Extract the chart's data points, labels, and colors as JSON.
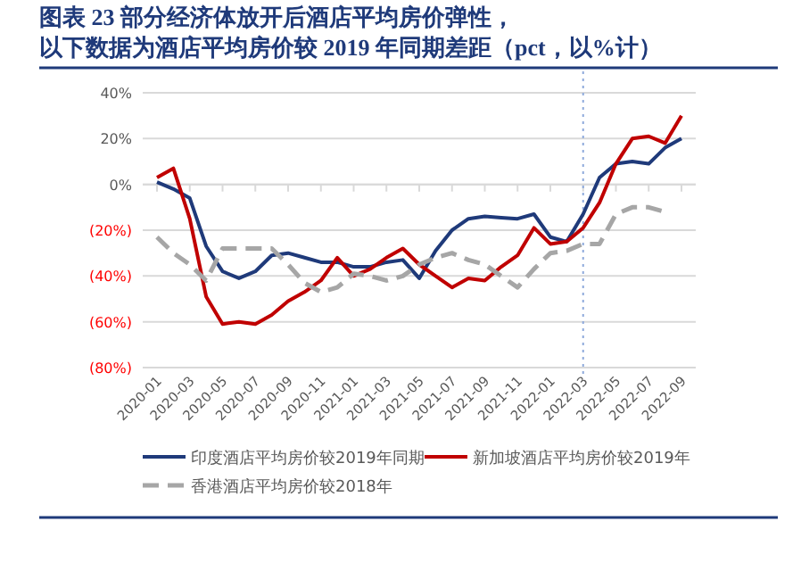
{
  "chart_data": {
    "type": "line",
    "title": "图表 23 部分经济体放开后酒店平均房价弹性，以下数据为酒店平均房价较 2019 年同期差距（pct，以%计）",
    "categories": [
      "2020-01",
      null,
      "2020-03",
      null,
      "2020-05",
      null,
      "2020-07",
      null,
      "2020-09",
      null,
      "2020-11",
      null,
      "2021-01",
      null,
      "2021-03",
      null,
      "2021-05",
      null,
      "2021-07",
      null,
      "2021-09",
      null,
      "2021-11",
      null,
      "2022-01",
      null,
      "2022-03",
      null,
      "2022-05",
      null,
      "2022-07",
      null,
      "2022-09"
    ],
    "series": [
      {
        "name": "印度酒店平均房价较2019年同期",
        "color": "#1f3a7a",
        "line_style": "solid",
        "values": [
          1,
          -2,
          -6,
          -27,
          -38,
          -41,
          -38,
          -31,
          -30,
          -32,
          -34,
          -34,
          -36,
          -36,
          -34,
          -33,
          -41,
          -29,
          -20,
          -15,
          -14,
          -14.5,
          -15,
          -13,
          -23,
          -25,
          -13,
          3,
          9,
          10,
          9,
          16,
          20
        ]
      },
      {
        "name": "新加坡酒店平均房价较2019年",
        "color": "#c00000",
        "line_style": "solid",
        "values": [
          3,
          7,
          -15,
          -49,
          -61,
          -60,
          -61,
          -57,
          -51,
          -47,
          -42,
          -32,
          -40,
          -37,
          -32,
          -28,
          -35,
          -40,
          -45,
          -41,
          -42,
          -36,
          -31,
          -19,
          -26,
          -25,
          -19,
          -8,
          9,
          20,
          21,
          18,
          30
        ]
      },
      {
        "name": "香港酒店平均房价较2018年",
        "color": "#a6a6a6",
        "line_style": "dashed",
        "values": [
          -23,
          -30,
          -35,
          -42,
          -28,
          -28,
          -28,
          -28,
          -35,
          -43,
          -47,
          -45,
          -39,
          -40,
          -42,
          -40,
          -35,
          -32,
          -30,
          -33,
          -35,
          -40,
          -45,
          -37,
          -30,
          -29,
          -26,
          -26,
          -13,
          -10,
          -10,
          -12,
          null
        ]
      }
    ],
    "ylim": [
      -80,
      40
    ],
    "yticks": [
      {
        "value": -80,
        "label": "(80%)"
      },
      {
        "value": -60,
        "label": "(60%)"
      },
      {
        "value": -40,
        "label": "(40%)"
      },
      {
        "value": -20,
        "label": "(20%)"
      },
      {
        "value": 0,
        "label": "0%"
      },
      {
        "value": 20,
        "label": "20%"
      },
      {
        "value": 40,
        "label": "40%"
      }
    ],
    "grid": "y",
    "legend": "bottom",
    "ref_lines": [
      {
        "axis": "x",
        "value": "2022-03",
        "color": "#8faadc",
        "line_style": "dotted"
      }
    ]
  }
}
